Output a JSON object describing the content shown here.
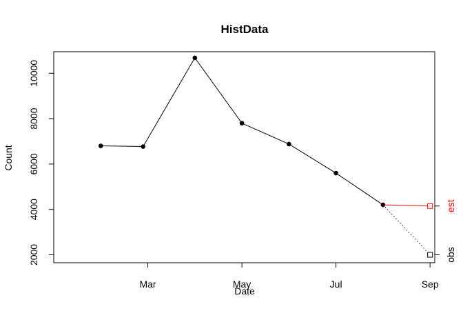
{
  "chart_data": {
    "type": "line",
    "title": "HistData",
    "xlabel": "Date",
    "ylabel": "Count",
    "x_ticks": [
      "Mar",
      "May",
      "Jul",
      "Sep"
    ],
    "x_tick_positions": [
      1.5,
      3.5,
      5.5,
      7.5
    ],
    "y_ticks": [
      2000,
      4000,
      6000,
      8000,
      10000
    ],
    "ylim": [
      1650,
      10950
    ],
    "xlim": [
      -0.5,
      7.6
    ],
    "x": [
      0.5,
      1.4,
      2.5,
      3.5,
      4.5,
      5.5,
      6.5
    ],
    "series": [
      {
        "name": "HistData",
        "values": [
          6800,
          6770,
          10680,
          7800,
          6880,
          5600,
          4200
        ],
        "color": "#000000"
      }
    ],
    "estimate": {
      "label": "est",
      "x": 7.5,
      "value": 4150,
      "color": "#ff0000"
    },
    "observed": {
      "label": "obs",
      "x": 7.5,
      "value": 2000,
      "color": "#000000"
    }
  }
}
